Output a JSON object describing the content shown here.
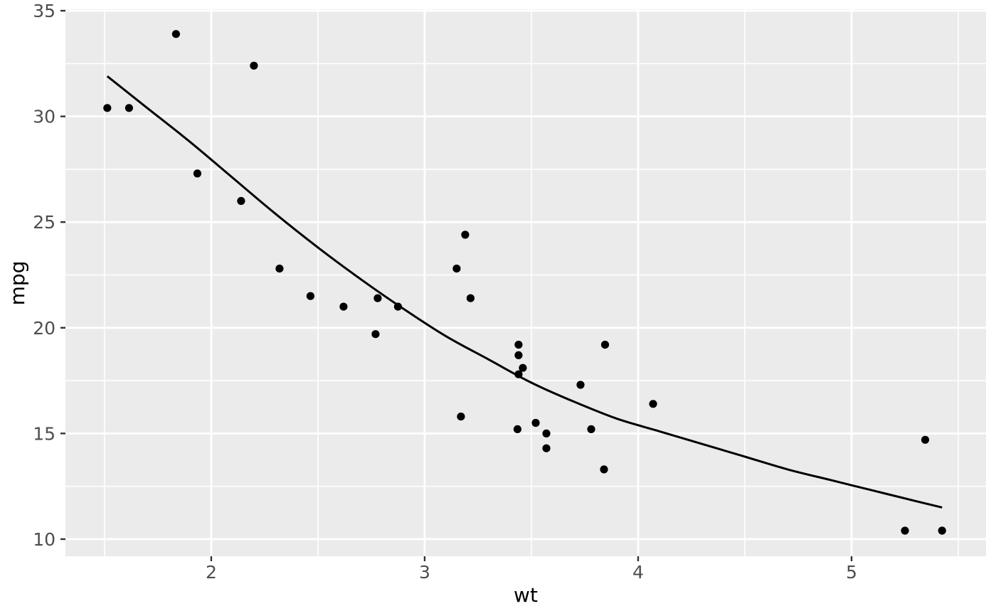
{
  "figure": {
    "background": "#FFFFFF",
    "panel_background": "#EBEBEB",
    "grid_color": "#FFFFFF",
    "tick_mark_color": "#333333",
    "tick_label_color": "#4D4D4D",
    "axis_title_color": "#000000",
    "point_color": "#000000",
    "smooth_line_color": "#000000"
  },
  "chart_data": {
    "type": "scatter",
    "title": "",
    "xlabel": "wt",
    "ylabel": "mpg",
    "xlim": [
      1.317,
      5.63
    ],
    "ylim": [
      9.19,
      35.07
    ],
    "x_major_ticks": [
      2,
      3,
      4,
      5
    ],
    "x_minor_ticks": [
      1.5,
      2.5,
      3.5,
      4.5,
      5.5
    ],
    "y_major_ticks": [
      10,
      15,
      20,
      25,
      30,
      35
    ],
    "y_minor_ticks": [
      12.5,
      17.5,
      22.5,
      27.5,
      32.5
    ],
    "grid": true,
    "legend": "none",
    "theme": "ggplot-gray",
    "points": [
      [
        2.62,
        21.0
      ],
      [
        2.875,
        21.0
      ],
      [
        2.32,
        22.8
      ],
      [
        3.215,
        21.4
      ],
      [
        3.44,
        18.7
      ],
      [
        3.46,
        18.1
      ],
      [
        3.57,
        14.3
      ],
      [
        3.19,
        24.4
      ],
      [
        3.15,
        22.8
      ],
      [
        3.44,
        19.2
      ],
      [
        3.44,
        17.8
      ],
      [
        4.07,
        16.4
      ],
      [
        3.73,
        17.3
      ],
      [
        3.78,
        15.2
      ],
      [
        5.25,
        10.4
      ],
      [
        5.424,
        10.4
      ],
      [
        5.345,
        14.7
      ],
      [
        2.2,
        32.4
      ],
      [
        1.615,
        30.4
      ],
      [
        1.835,
        33.9
      ],
      [
        2.465,
        21.5
      ],
      [
        3.52,
        15.5
      ],
      [
        3.435,
        15.2
      ],
      [
        3.84,
        13.3
      ],
      [
        3.845,
        19.2
      ],
      [
        1.935,
        27.3
      ],
      [
        2.14,
        26.0
      ],
      [
        1.513,
        30.4
      ],
      [
        3.17,
        15.8
      ],
      [
        2.77,
        19.7
      ],
      [
        3.57,
        15.0
      ],
      [
        2.78,
        21.4
      ]
    ],
    "smooth_line": {
      "type": "loess",
      "se": false,
      "points": [
        [
          1.513,
          31.9
        ],
        [
          1.7,
          30.4
        ],
        [
          1.9,
          28.8
        ],
        [
          2.1,
          27.1
        ],
        [
          2.3,
          25.4
        ],
        [
          2.5,
          23.8
        ],
        [
          2.7,
          22.3
        ],
        [
          2.9,
          20.9
        ],
        [
          3.1,
          19.6
        ],
        [
          3.3,
          18.5
        ],
        [
          3.5,
          17.4
        ],
        [
          3.7,
          16.5
        ],
        [
          3.9,
          15.7
        ],
        [
          4.1,
          15.1
        ],
        [
          4.3,
          14.5
        ],
        [
          4.5,
          13.9
        ],
        [
          4.7,
          13.3
        ],
        [
          4.9,
          12.8
        ],
        [
          5.1,
          12.3
        ],
        [
          5.3,
          11.8
        ],
        [
          5.424,
          11.5
        ]
      ]
    }
  }
}
